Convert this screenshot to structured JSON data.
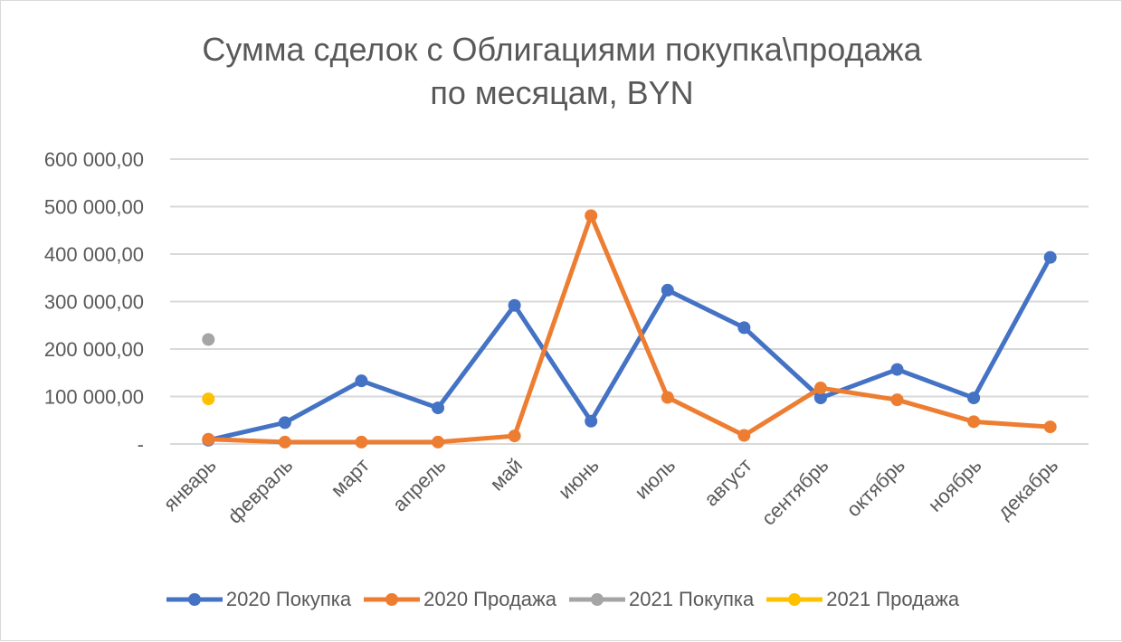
{
  "chart_data": {
    "type": "line",
    "title_line1": "Сумма сделок с Облигациями покупка\\продажа",
    "title_line2": "по месяцам, BYN",
    "categories": [
      "январь",
      "февраль",
      "март",
      "апрель",
      "май",
      "июнь",
      "июль",
      "август",
      "сентябрь",
      "октябрь",
      "ноябрь",
      "декабрь"
    ],
    "y_ticks": [
      0,
      100000,
      200000,
      300000,
      400000,
      500000,
      600000
    ],
    "y_tick_labels": [
      "-",
      "100 000,00",
      "200 000,00",
      "300 000,00",
      "400 000,00",
      "500 000,00",
      "600 000,00"
    ],
    "ylim": [
      0,
      600000
    ],
    "grid": true,
    "legend_position": "bottom",
    "series": [
      {
        "name": "2020 Покупка",
        "color": "#4472c4",
        "values": [
          8000,
          45000,
          133000,
          76000,
          292000,
          48000,
          324000,
          245000,
          97000,
          157000,
          97000,
          393000
        ]
      },
      {
        "name": "2020 Продажа",
        "color": "#ed7d31",
        "values": [
          10000,
          4000,
          4000,
          4000,
          17000,
          481000,
          98000,
          18000,
          118000,
          93000,
          47000,
          36000
        ]
      },
      {
        "name": "2021 Покупка",
        "color": "#a5a5a5",
        "values": [
          220000,
          null,
          null,
          null,
          null,
          null,
          null,
          null,
          null,
          null,
          null,
          null
        ]
      },
      {
        "name": "2021 Продажа",
        "color": "#ffc000",
        "values": [
          95000,
          null,
          null,
          null,
          null,
          null,
          null,
          null,
          null,
          null,
          null,
          null
        ]
      }
    ]
  }
}
